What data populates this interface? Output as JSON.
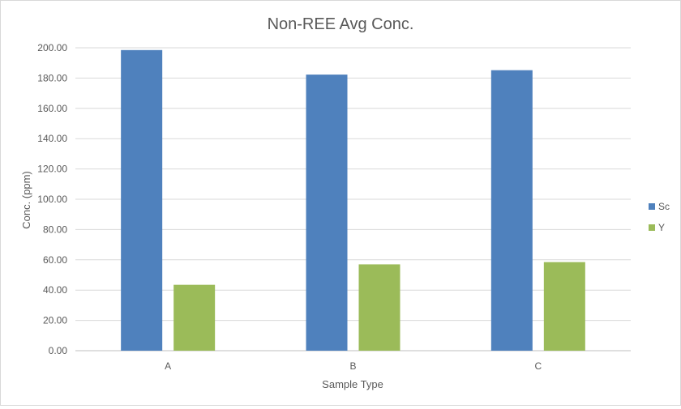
{
  "chart_data": {
    "type": "bar",
    "title": "Non-REE Avg Conc.",
    "xlabel": "Sample Type",
    "ylabel": "Conc. (ppm)",
    "categories": [
      "A",
      "B",
      "C"
    ],
    "series": [
      {
        "name": "Sc",
        "values": [
          198.5,
          182.3,
          185.2
        ],
        "color": "#4f81bd"
      },
      {
        "name": "Y",
        "values": [
          43.5,
          57.0,
          58.5
        ],
        "color": "#9bbb59"
      }
    ],
    "ylim": [
      0,
      200
    ],
    "yticks": [
      "0.00",
      "20.00",
      "40.00",
      "60.00",
      "80.00",
      "100.00",
      "120.00",
      "140.00",
      "160.00",
      "180.00",
      "200.00"
    ],
    "grid": true,
    "legend_position": "right",
    "colors": {
      "gridline": "#d9d9d9",
      "axis": "#bfbfbf",
      "text": "#595959"
    }
  }
}
